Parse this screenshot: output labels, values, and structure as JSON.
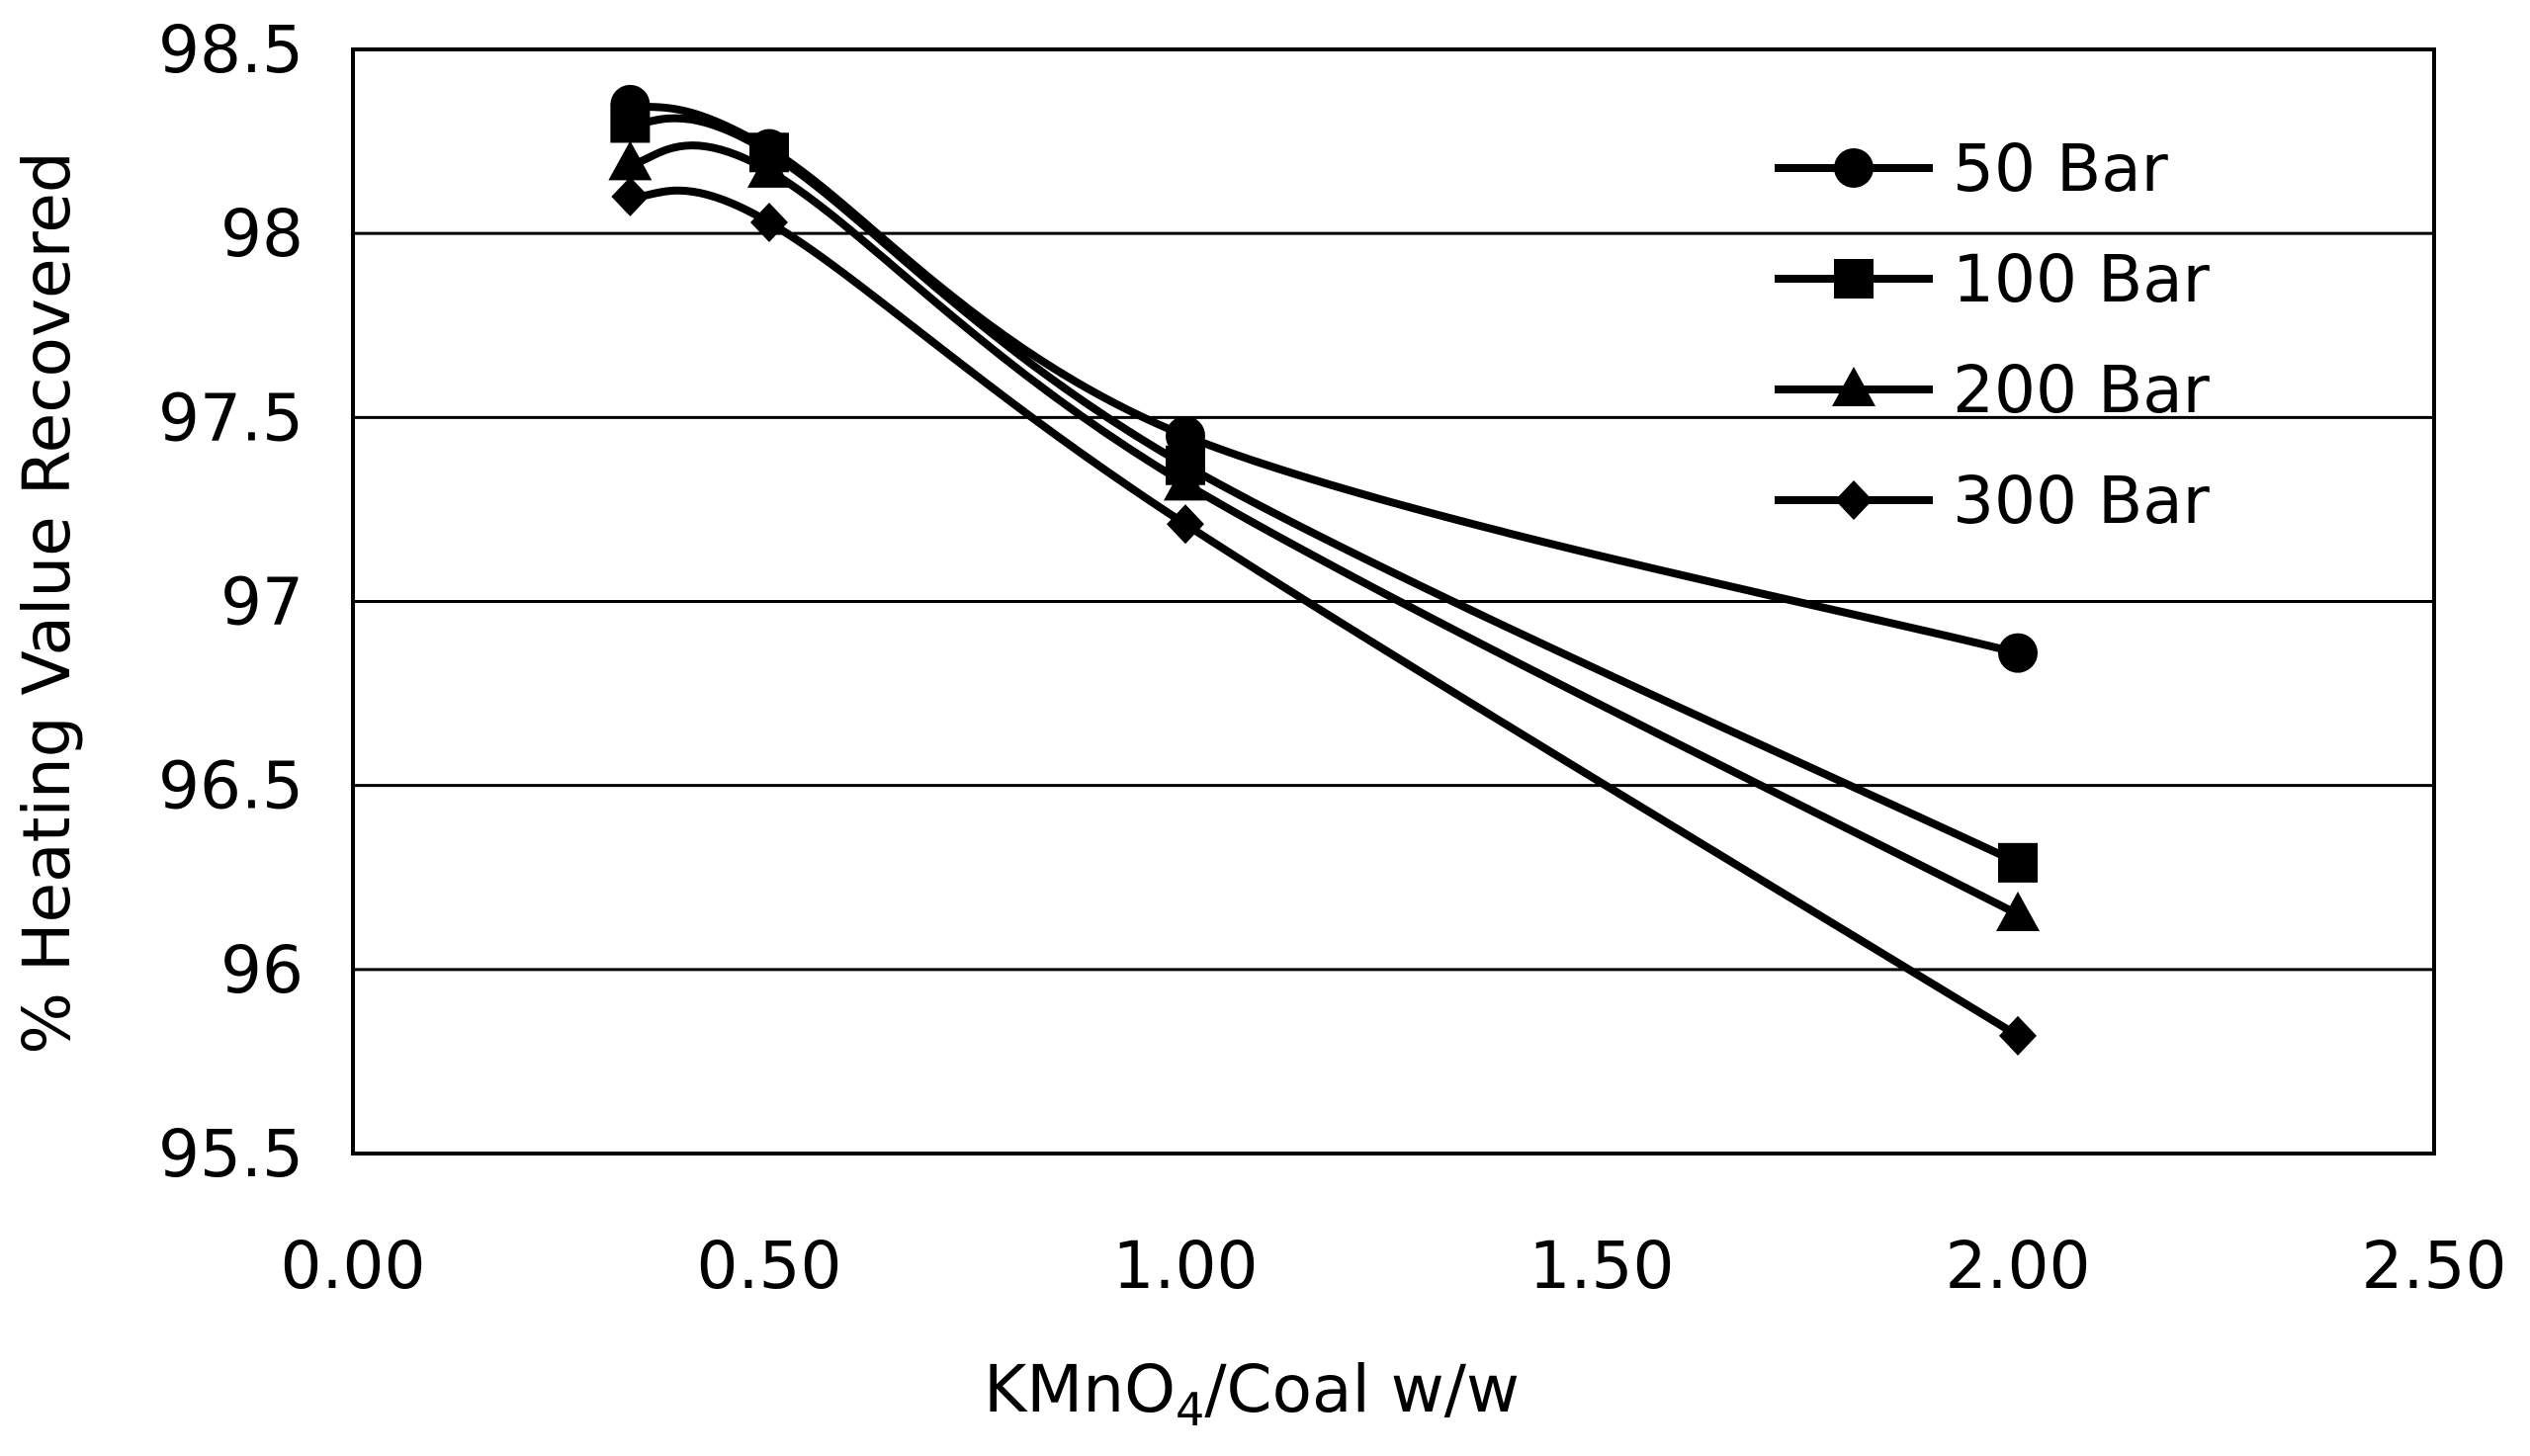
{
  "chart_data": {
    "type": "line",
    "title": "",
    "xlabel_main": "KMnO",
    "xlabel_sub": "4",
    "xlabel_tail": "/Coal w/w",
    "ylabel": "% Heating Value Recovered",
    "xlim": [
      0,
      2.5
    ],
    "ylim": [
      95.5,
      98.5
    ],
    "x_ticks": [
      0,
      0.5,
      1,
      1.5,
      2,
      2.5
    ],
    "x_tick_labels": [
      "0.00",
      "0.50",
      "1.00",
      "1.50",
      "2.00",
      "2.50"
    ],
    "y_ticks": [
      95.5,
      96,
      96.5,
      97,
      97.5,
      98,
      98.5
    ],
    "y_tick_labels": [
      "95.5",
      "96",
      "96.5",
      "97",
      "97.5",
      "98",
      "98.5"
    ],
    "grid": "horizontal",
    "legend_position": "top-right",
    "x": [
      0.333,
      0.5,
      1.0,
      2.0
    ],
    "series": [
      {
        "name": "50 Bar",
        "marker": "circle",
        "values": [
          98.35,
          98.23,
          97.45,
          96.86
        ]
      },
      {
        "name": "100 Bar",
        "marker": "square",
        "values": [
          98.3,
          98.22,
          97.37,
          96.29
        ]
      },
      {
        "name": "200 Bar",
        "marker": "triangle",
        "values": [
          98.19,
          98.17,
          97.32,
          96.15
        ]
      },
      {
        "name": "300 Bar",
        "marker": "diamond",
        "values": [
          98.1,
          98.03,
          97.21,
          95.82
        ]
      }
    ]
  }
}
